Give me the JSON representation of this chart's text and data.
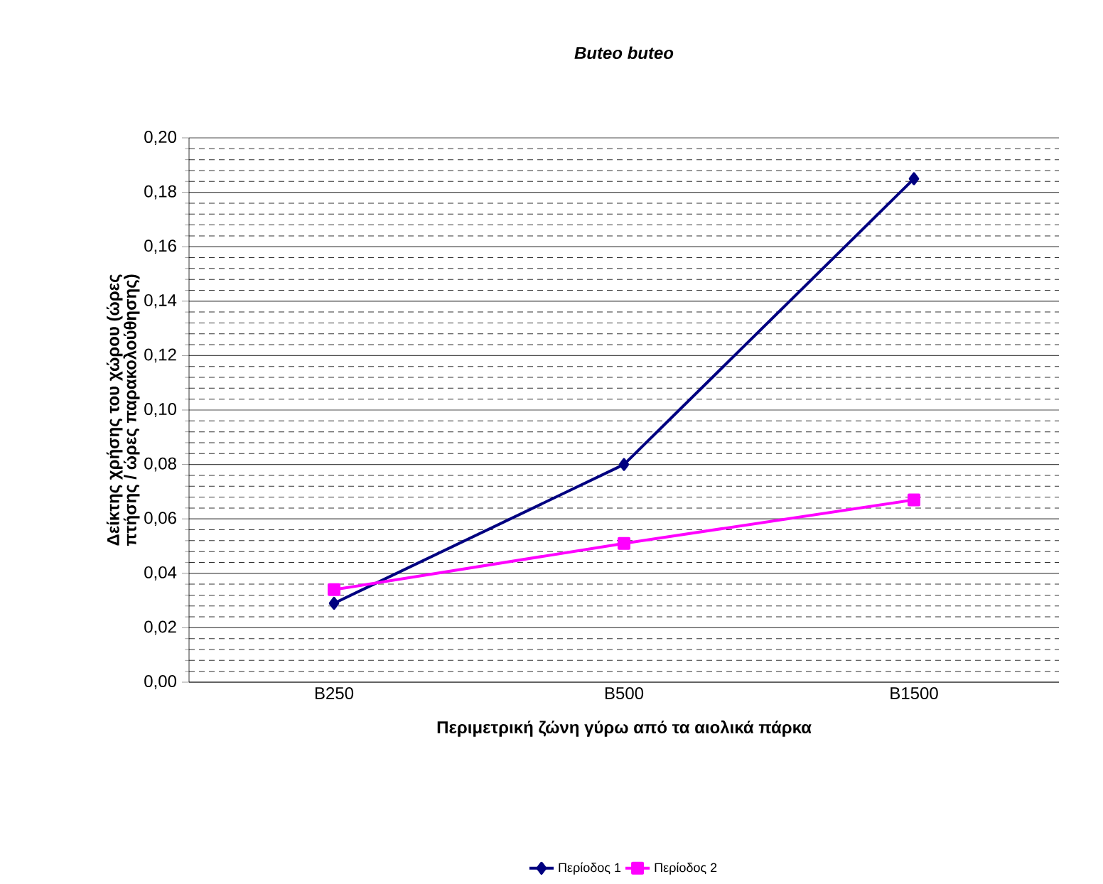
{
  "chart_data": {
    "type": "line",
    "title": "Buteo buteo",
    "xlabel": "Περιμετρική ζώνη γύρω από τα αιολικά πάρκα",
    "ylabel": "Δείκτης χρήσης του χώρου (ώρες πτήσης / ώρες παρακολούθησης)",
    "categories": [
      "B250",
      "B500",
      "B1500"
    ],
    "series": [
      {
        "name": "Περίοδος 1",
        "color": "#000080",
        "marker": "diamond",
        "values": [
          0.029,
          0.08,
          0.185
        ]
      },
      {
        "name": "Περίοδος 2",
        "color": "#ff00ff",
        "marker": "square",
        "values": [
          0.034,
          0.051,
          0.067
        ]
      }
    ],
    "ylim": [
      0,
      0.2
    ],
    "yticks": [
      {
        "value": 0,
        "label": "0,00"
      },
      {
        "value": 0.02,
        "label": "0,02"
      },
      {
        "value": 0.04,
        "label": "0,04"
      },
      {
        "value": 0.06,
        "label": "0,06"
      },
      {
        "value": 0.08,
        "label": "0,08"
      },
      {
        "value": 0.1,
        "label": "0,10"
      },
      {
        "value": 0.12,
        "label": "0,12"
      },
      {
        "value": 0.14,
        "label": "0,14"
      },
      {
        "value": 0.16,
        "label": "0,16"
      },
      {
        "value": 0.18,
        "label": "0,18"
      },
      {
        "value": 0.2,
        "label": "0,20"
      }
    ],
    "grid": "y",
    "legend": "bottom",
    "line_style": "solid"
  }
}
